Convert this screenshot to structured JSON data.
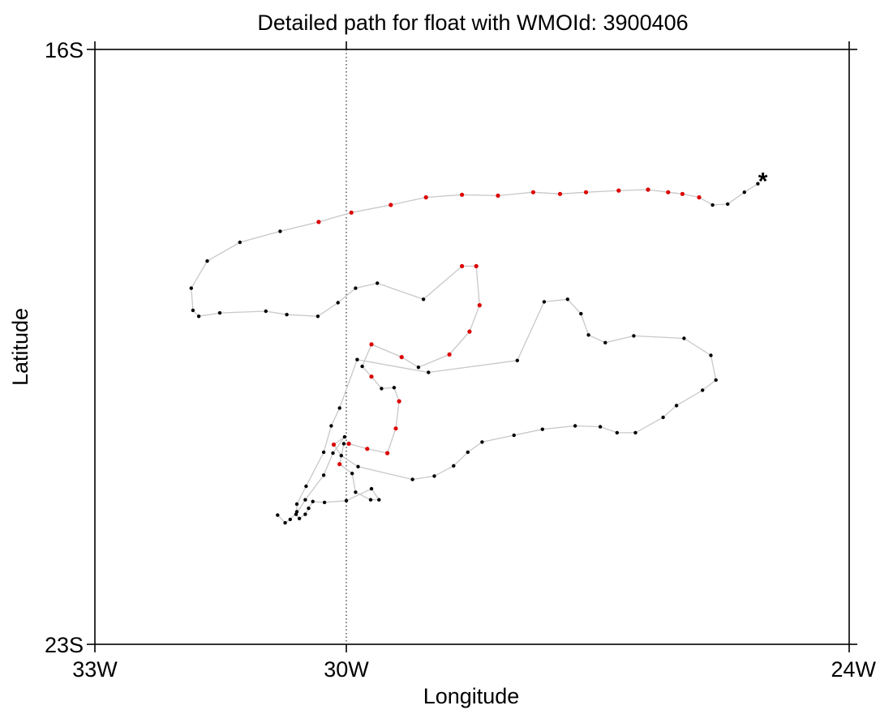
{
  "chart_data": {
    "type": "scatter",
    "title": "Detailed path for float with WMOId: 3900406",
    "xlabel": "Longitude",
    "ylabel": "Latitude",
    "xlim": [
      -33,
      -24
    ],
    "ylim": [
      -23,
      -16
    ],
    "x_ticks": [
      {
        "value": -33,
        "label": "33W"
      },
      {
        "value": -30,
        "label": "30W"
      },
      {
        "value": -24,
        "label": "24W"
      }
    ],
    "y_ticks": [
      {
        "value": -16,
        "label": "16S"
      },
      {
        "value": -23,
        "label": "23S"
      }
    ],
    "reference_line": {
      "x": -30,
      "style": "dotted"
    },
    "grid": false,
    "colors": {
      "path": "#c8c8c8",
      "point": "#000000",
      "highlight": "#dd0000",
      "axis": "#000000"
    },
    "end_marker": {
      "symbol": "*",
      "lon": -25.03,
      "lat": -17.52,
      "color": "#dd0000"
    },
    "path": [
      [
        -25.09,
        -17.58,
        0
      ],
      [
        -25.25,
        -17.68,
        0
      ],
      [
        -25.45,
        -17.82,
        0
      ],
      [
        -25.63,
        -17.83,
        0
      ],
      [
        -25.79,
        -17.74,
        1
      ],
      [
        -25.99,
        -17.7,
        1
      ],
      [
        -26.16,
        -17.68,
        1
      ],
      [
        -26.4,
        -17.65,
        1
      ],
      [
        -26.75,
        -17.66,
        1
      ],
      [
        -27.14,
        -17.68,
        1
      ],
      [
        -27.45,
        -17.7,
        1
      ],
      [
        -27.77,
        -17.68,
        1
      ],
      [
        -28.19,
        -17.72,
        1
      ],
      [
        -28.62,
        -17.71,
        1
      ],
      [
        -29.05,
        -17.74,
        1
      ],
      [
        -29.47,
        -17.83,
        1
      ],
      [
        -29.94,
        -17.92,
        1
      ],
      [
        -30.33,
        -18.03,
        1
      ],
      [
        -30.79,
        -18.14,
        0
      ],
      [
        -31.27,
        -18.27,
        0
      ],
      [
        -31.66,
        -18.49,
        0
      ],
      [
        -31.85,
        -18.81,
        0
      ],
      [
        -31.83,
        -19.07,
        0
      ],
      [
        -31.76,
        -19.14,
        0
      ],
      [
        -31.51,
        -19.1,
        0
      ],
      [
        -30.96,
        -19.08,
        0
      ],
      [
        -30.71,
        -19.12,
        0
      ],
      [
        -30.34,
        -19.14,
        0
      ],
      [
        -30.1,
        -18.98,
        0
      ],
      [
        -29.89,
        -18.81,
        0
      ],
      [
        -29.63,
        -18.75,
        0
      ],
      [
        -29.08,
        -18.94,
        0
      ],
      [
        -28.62,
        -18.55,
        1
      ],
      [
        -28.45,
        -18.55,
        1
      ],
      [
        -28.41,
        -19.01,
        1
      ],
      [
        -28.53,
        -19.32,
        1
      ],
      [
        -28.77,
        -19.59,
        1
      ],
      [
        -29.14,
        -19.74,
        0
      ],
      [
        -29.34,
        -19.62,
        1
      ],
      [
        -29.7,
        -19.47,
        1
      ],
      [
        -29.81,
        -19.73,
        0
      ],
      [
        -29.7,
        -19.85,
        1
      ],
      [
        -29.58,
        -19.99,
        0
      ],
      [
        -29.43,
        -19.98,
        0
      ],
      [
        -29.37,
        -20.14,
        1
      ],
      [
        -29.41,
        -20.46,
        1
      ],
      [
        -29.51,
        -20.75,
        1
      ],
      [
        -29.75,
        -20.7,
        1
      ],
      [
        -29.97,
        -20.64,
        1
      ],
      [
        -30.03,
        -20.64,
        0
      ],
      [
        -30.08,
        -20.88,
        1
      ],
      [
        -29.93,
        -20.99,
        0
      ],
      [
        -29.89,
        -21.21,
        0
      ],
      [
        -29.71,
        -21.3,
        0
      ],
      [
        -29.61,
        -21.3,
        0
      ],
      [
        -29.7,
        -21.17,
        0
      ],
      [
        -30.0,
        -21.31,
        0
      ],
      [
        -30.26,
        -21.33,
        0
      ],
      [
        -30.4,
        -21.32,
        0
      ],
      [
        -30.45,
        -21.4,
        0
      ],
      [
        -30.49,
        -21.47,
        0
      ],
      [
        -30.56,
        -21.52,
        0
      ],
      [
        -30.6,
        -21.47,
        0
      ],
      [
        -30.49,
        -21.3,
        0
      ],
      [
        -30.27,
        -21.01,
        0
      ],
      [
        -30.16,
        -20.75,
        0
      ],
      [
        -30.02,
        -20.56,
        0
      ],
      [
        -30.15,
        -20.65,
        1
      ],
      [
        -30.06,
        -20.78,
        0
      ],
      [
        -29.86,
        -20.91,
        0
      ],
      [
        -29.21,
        -21.06,
        0
      ],
      [
        -28.95,
        -21.02,
        0
      ],
      [
        -28.72,
        -20.9,
        0
      ],
      [
        -28.55,
        -20.74,
        0
      ],
      [
        -28.38,
        -20.62,
        0
      ],
      [
        -28.0,
        -20.54,
        0
      ],
      [
        -27.66,
        -20.47,
        0
      ],
      [
        -27.27,
        -20.43,
        0
      ],
      [
        -26.97,
        -20.44,
        0
      ],
      [
        -26.77,
        -20.51,
        0
      ],
      [
        -26.55,
        -20.51,
        0
      ],
      [
        -26.22,
        -20.33,
        0
      ],
      [
        -26.06,
        -20.19,
        0
      ],
      [
        -25.75,
        -20.01,
        0
      ],
      [
        -25.59,
        -19.89,
        0
      ],
      [
        -25.65,
        -19.6,
        0
      ],
      [
        -25.97,
        -19.4,
        0
      ],
      [
        -26.57,
        -19.37,
        0
      ],
      [
        -26.91,
        -19.45,
        0
      ],
      [
        -27.11,
        -19.36,
        0
      ],
      [
        -27.2,
        -19.11,
        0
      ],
      [
        -27.36,
        -18.94,
        0
      ],
      [
        -27.64,
        -18.97,
        0
      ],
      [
        -27.96,
        -19.66,
        0
      ],
      [
        -29.02,
        -19.8,
        0
      ],
      [
        -29.87,
        -19.65,
        0
      ],
      [
        -30.08,
        -20.22,
        0
      ],
      [
        -30.18,
        -20.43,
        0
      ],
      [
        -30.27,
        -20.74,
        0
      ],
      [
        -30.48,
        -21.14,
        0
      ],
      [
        -30.59,
        -21.35,
        0
      ],
      [
        -30.59,
        -21.44,
        0
      ],
      [
        -30.67,
        -21.53,
        0
      ],
      [
        -30.73,
        -21.57,
        0
      ],
      [
        -30.82,
        -21.48,
        0
      ]
    ]
  }
}
